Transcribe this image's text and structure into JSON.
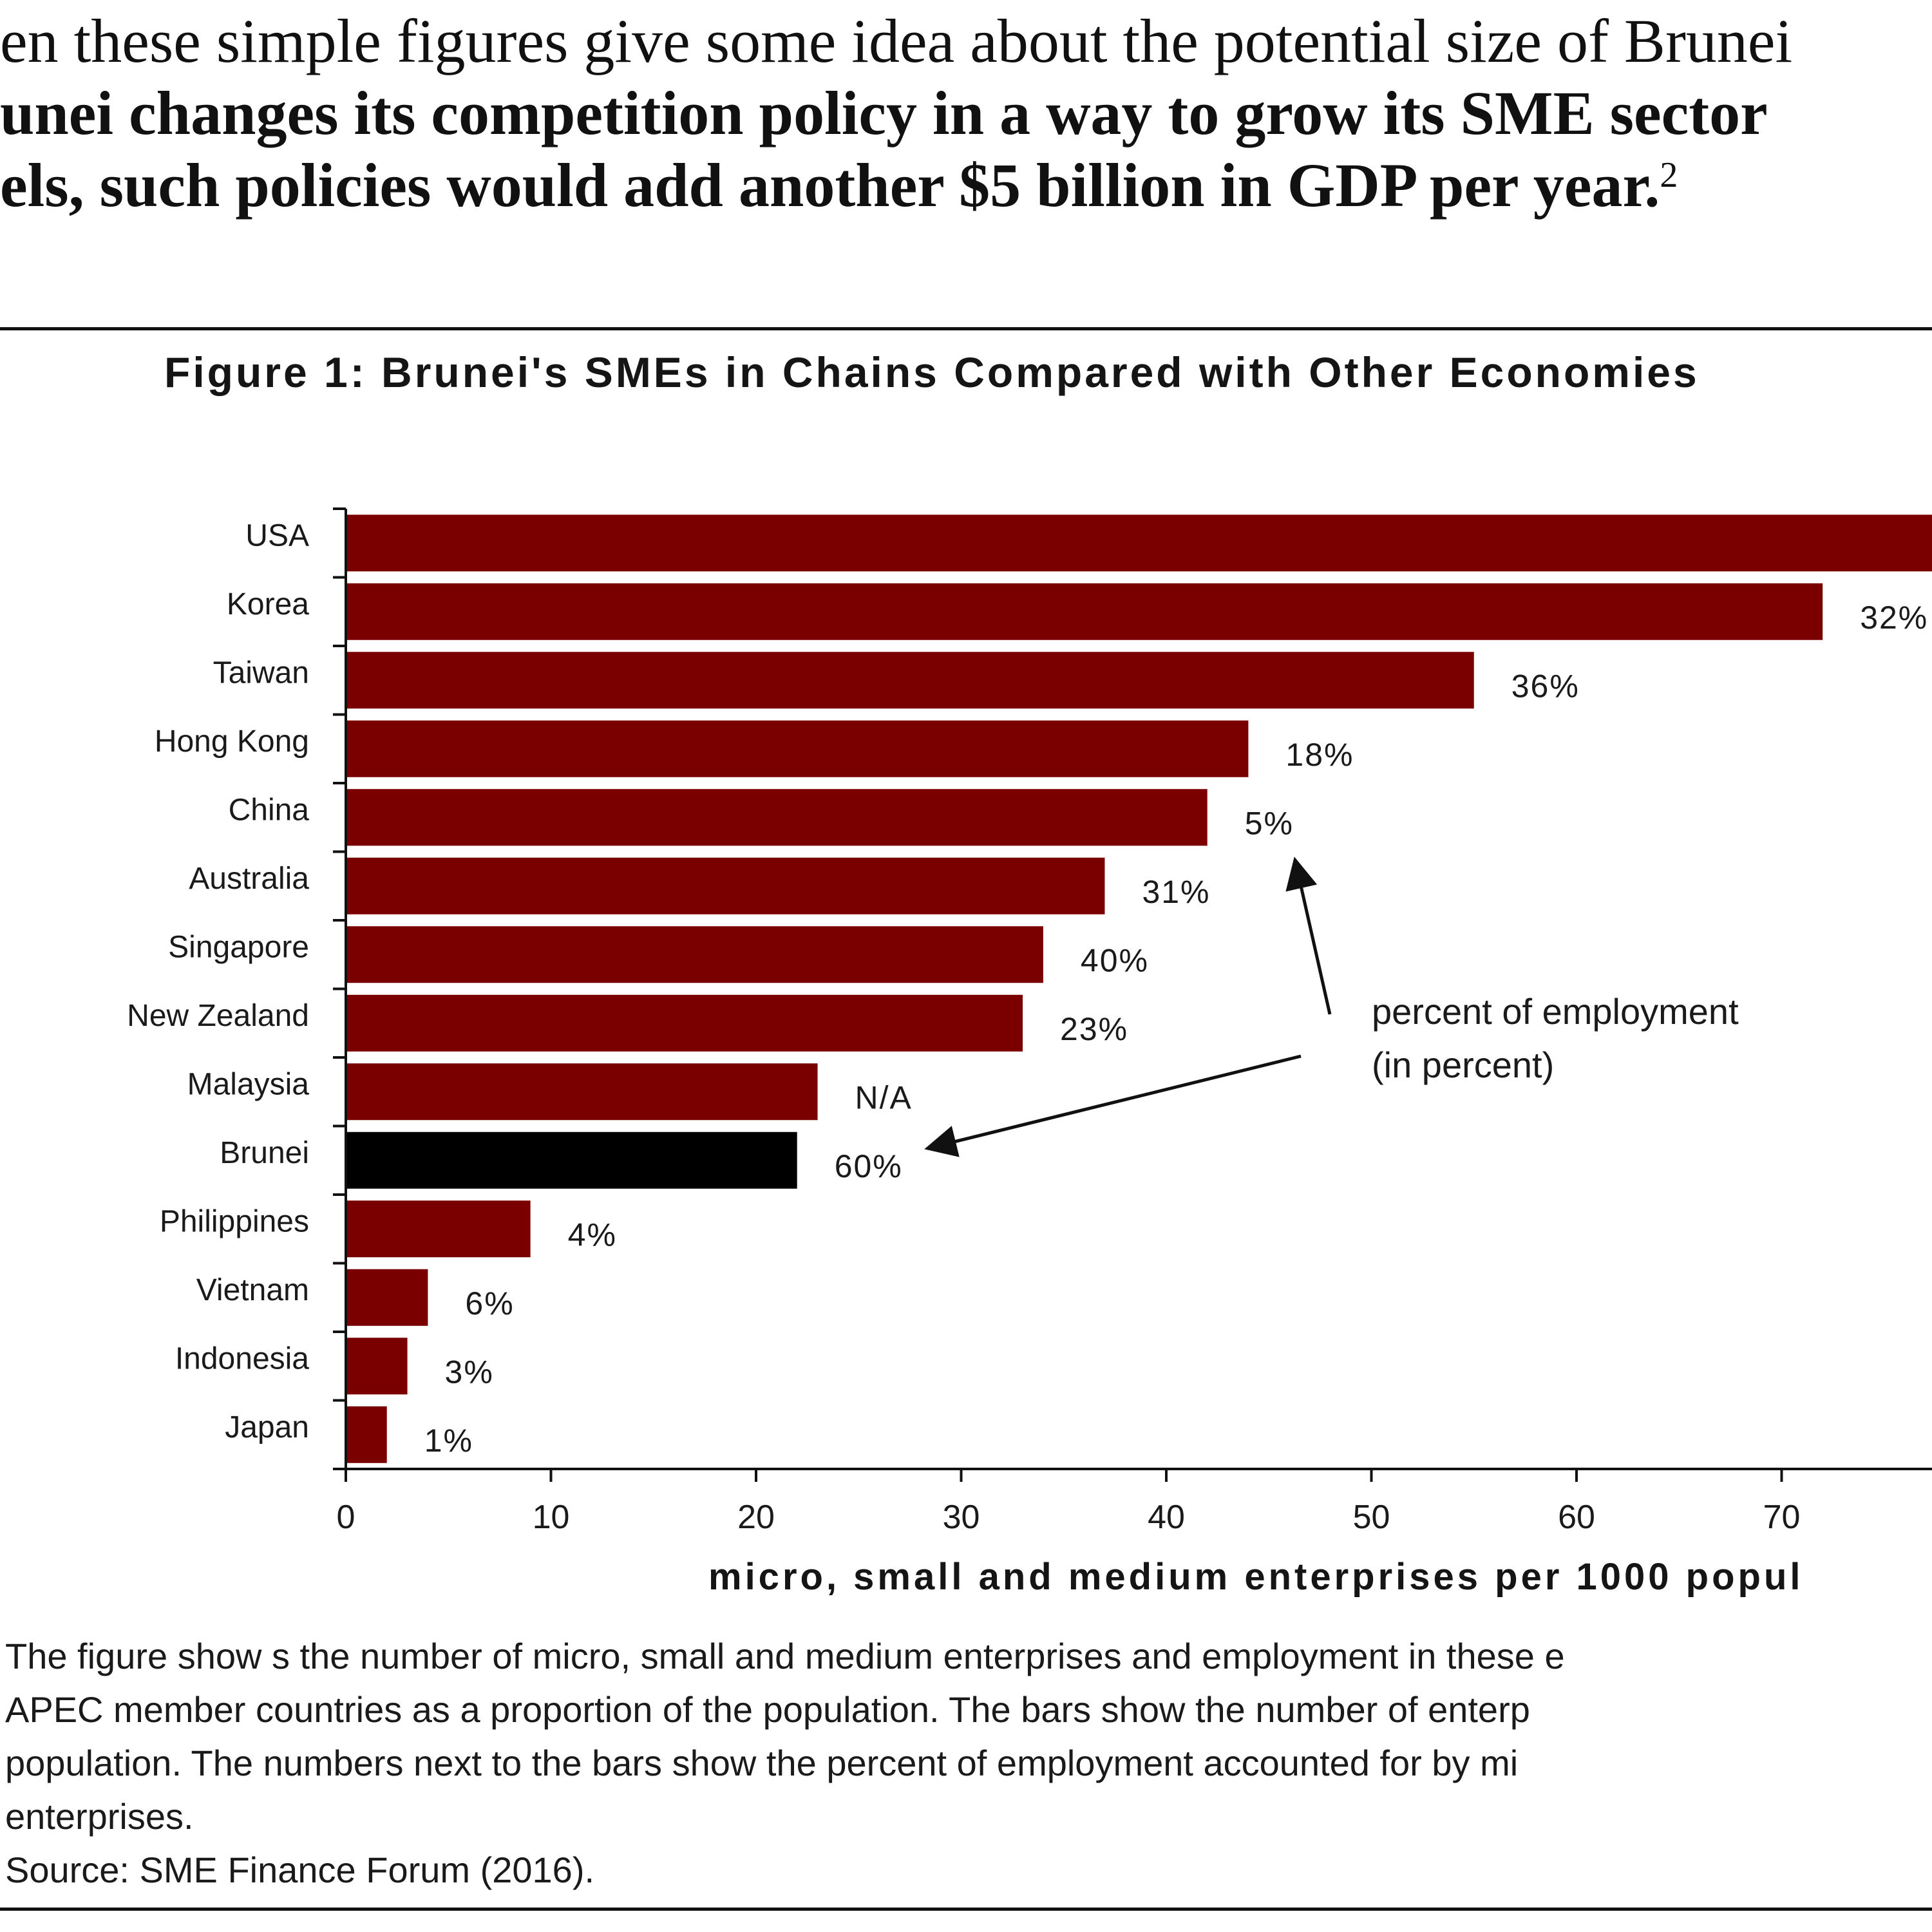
{
  "intro": {
    "line1": "en these simple figures give some idea about the potential size of Brunei",
    "line2": "unei changes its competition policy in a way to grow its SME sector",
    "line3": "els, such policies would add another $5 billion in GDP per year.",
    "footnote_marker": "2"
  },
  "figure_title": "Figure 1: Brunei's SMEs in Chains Compared with Other Economies",
  "chart_data": {
    "type": "bar",
    "orientation": "horizontal",
    "categories": [
      "USA",
      "Korea",
      "Taiwan",
      "Hong Kong",
      "China",
      "Australia",
      "Singapore",
      "New Zealand",
      "Malaysia",
      "Brunei",
      "Philippines",
      "Vietnam",
      "Indonesia",
      "Japan"
    ],
    "values": [
      82,
      72,
      55,
      44,
      42,
      37,
      34,
      33,
      23,
      22,
      9,
      4,
      3,
      2
    ],
    "employment_labels": [
      "",
      "32%",
      "36%",
      "18%",
      "5%",
      "31%",
      "40%",
      "23%",
      "N/A",
      "60%",
      "4%",
      "6%",
      "3%",
      "1%"
    ],
    "highlight": "Brunei",
    "colors": {
      "bar": "#7a0000",
      "highlight": "#000000"
    },
    "xticks": [
      0,
      10,
      20,
      30,
      40,
      50,
      60,
      70
    ],
    "xlim": [
      0,
      77
    ],
    "xlabel": "micro, small and medium enterprises per 1000 popul",
    "annotation": [
      "percent of employment",
      "(in percent)"
    ],
    "grid": false,
    "legend": "none"
  },
  "caption": {
    "lines": [
      "The figure show s the number of micro, small and medium enterprises and employment in these e",
      "APEC member countries as a proportion of the population. The bars show the number of enterp",
      "population. The numbers next to the bars show the percent of employment accounted for by mi",
      "enterprises."
    ],
    "source": "Source: SME Finance Forum (2016)."
  }
}
